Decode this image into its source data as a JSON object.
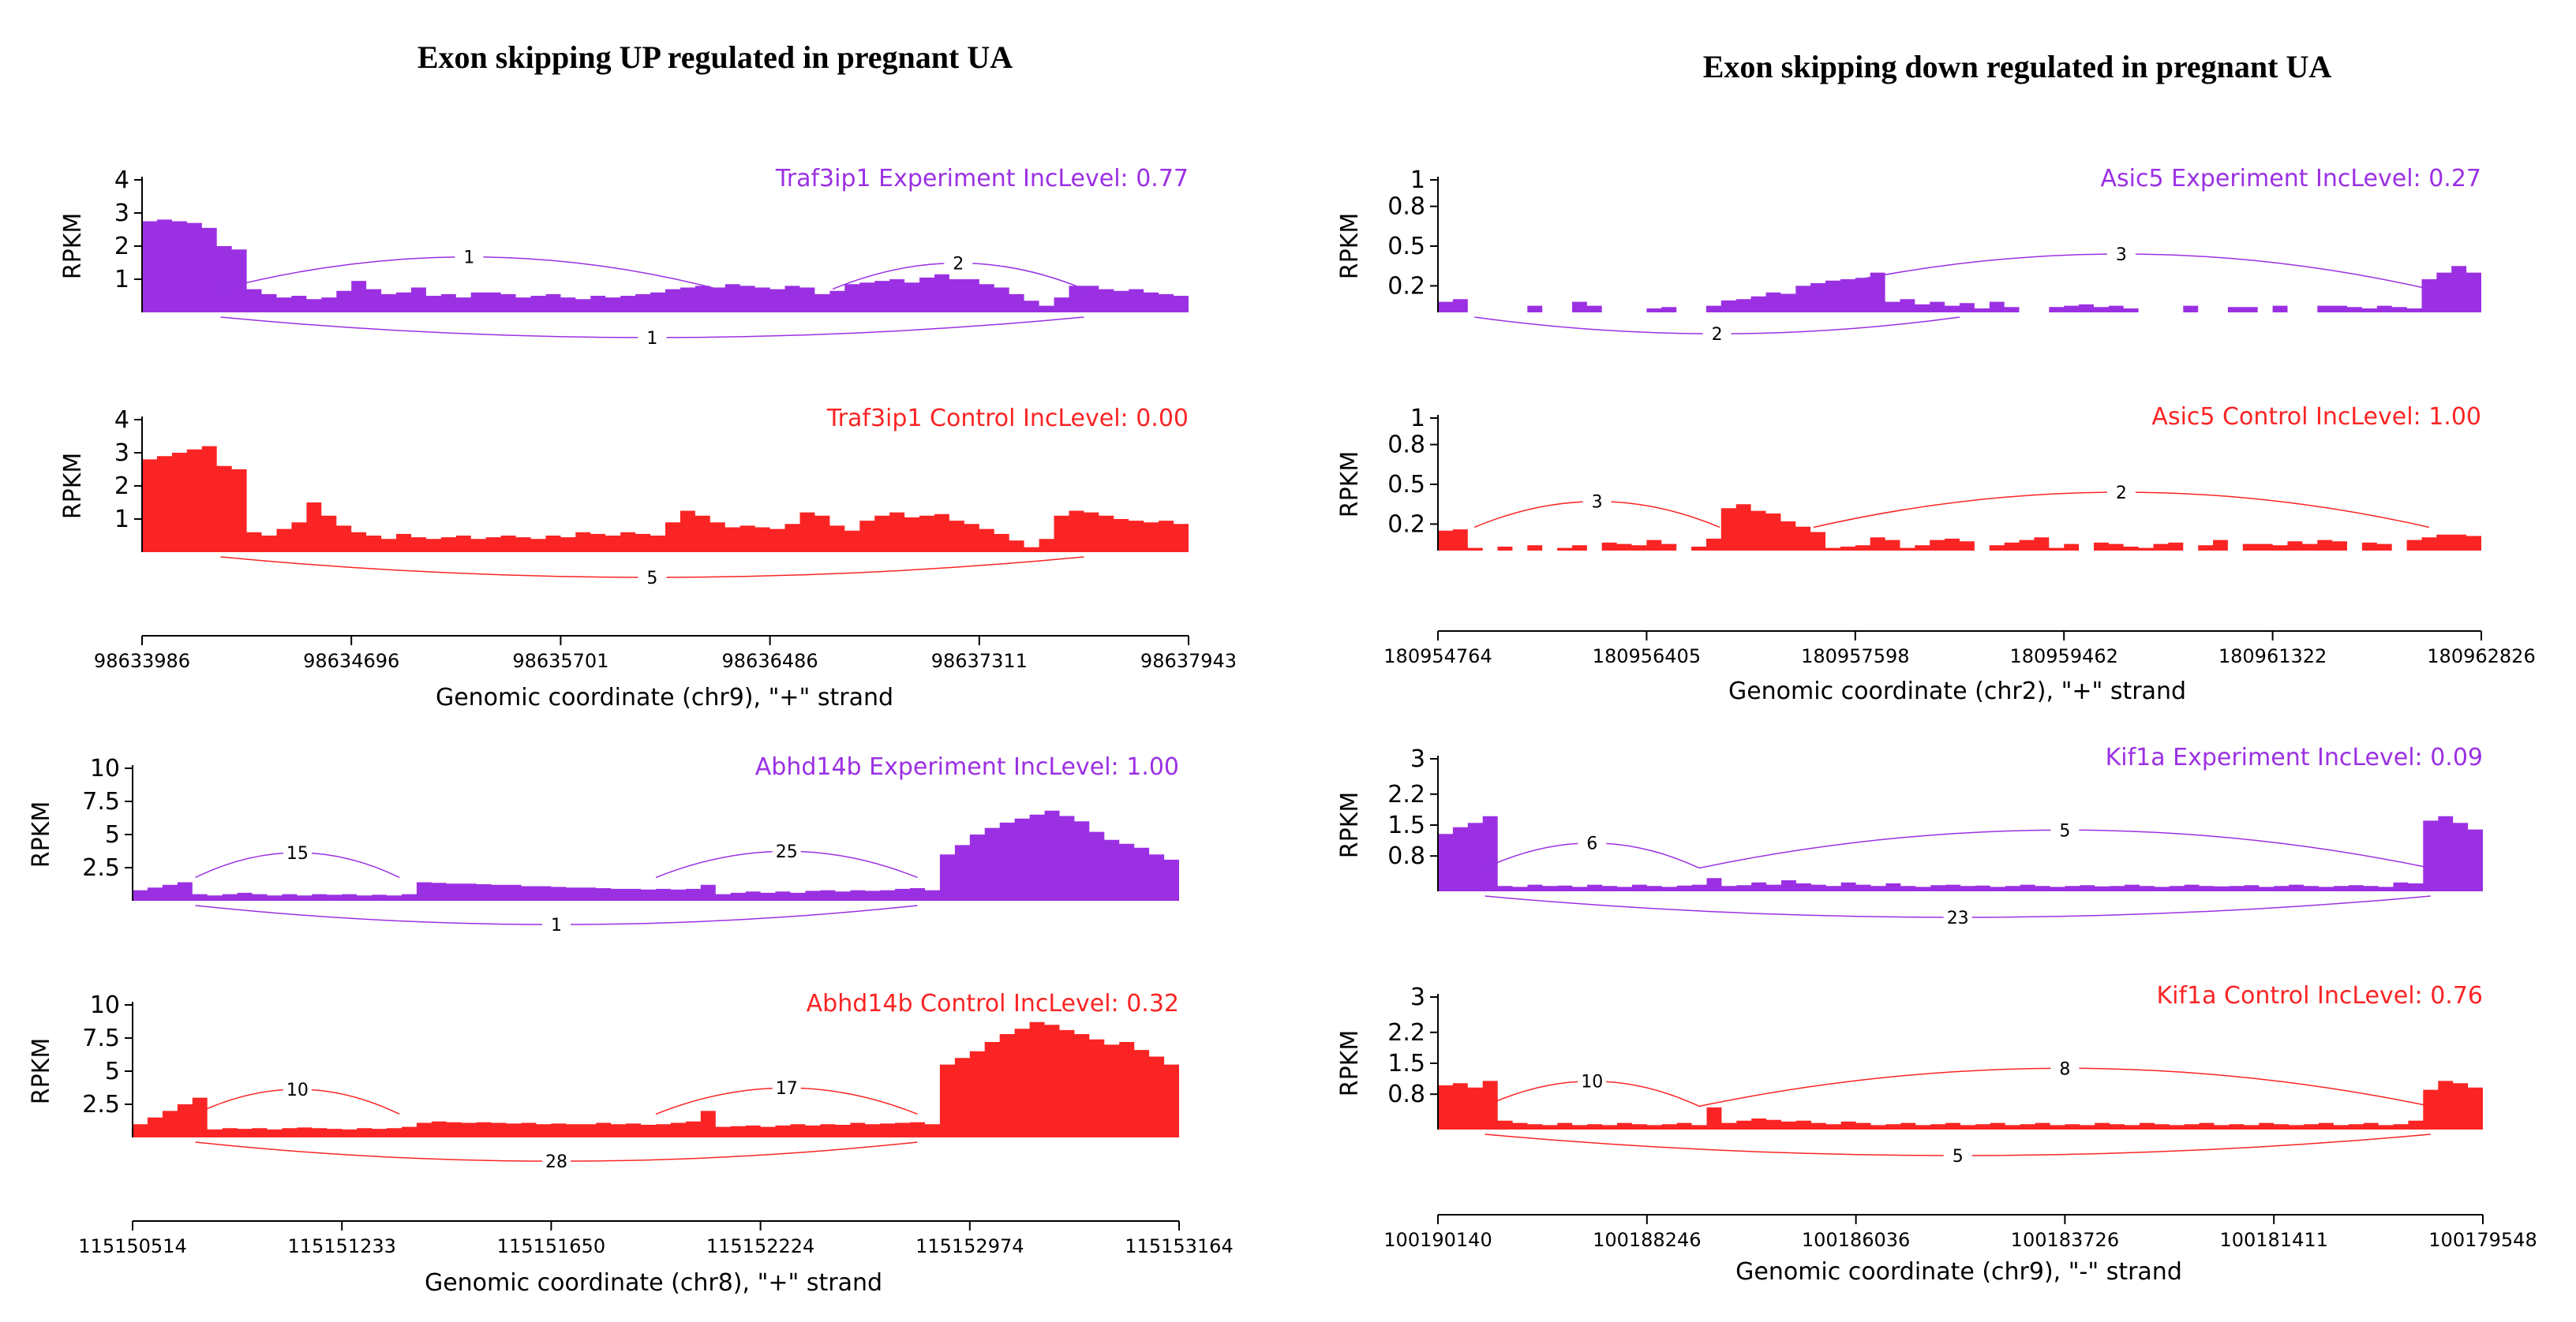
{
  "colors": {
    "experiment": "#9b30e3",
    "control": "#fa2424",
    "axis": "#000000"
  },
  "chart_data": [
    {
      "type": "area",
      "title": "Exon skipping UP regulated in pregnant UA",
      "gene": "Traf3ip1",
      "ylabel": "RPKM",
      "xlabel": "Genomic coordinate (chr9), \"+\" strand",
      "xticks": [
        "98633986",
        "98634696",
        "98635701",
        "98636486",
        "98637311",
        "98637943"
      ],
      "yticks": [
        "1",
        "2",
        "3",
        "4"
      ],
      "ylim": [
        0,
        4
      ],
      "exon_fractions": [
        0.075,
        0.55,
        0.9
      ],
      "tracks": [
        {
          "name": "Experiment",
          "label": "Traf3ip1 Experiment IncLevel: 0.77",
          "profile": [
            2.75,
            2.8,
            2.75,
            2.7,
            2.55,
            2.0,
            1.9,
            0.7,
            0.55,
            0.45,
            0.5,
            0.4,
            0.45,
            0.65,
            0.95,
            0.7,
            0.55,
            0.6,
            0.75,
            0.5,
            0.55,
            0.45,
            0.6,
            0.6,
            0.55,
            0.45,
            0.5,
            0.55,
            0.45,
            0.4,
            0.5,
            0.45,
            0.5,
            0.55,
            0.6,
            0.7,
            0.75,
            0.8,
            0.75,
            0.85,
            0.8,
            0.75,
            0.7,
            0.8,
            0.75,
            0.55,
            0.65,
            0.85,
            0.9,
            0.95,
            1.0,
            0.9,
            1.05,
            1.15,
            1.0,
            1.0,
            0.85,
            0.75,
            0.55,
            0.35,
            0.2,
            0.45,
            0.8,
            0.8,
            0.7,
            0.65,
            0.7,
            0.6,
            0.55,
            0.5
          ],
          "arcs_above": [
            {
              "a": 0.075,
              "b": 0.55,
              "label": "1"
            },
            {
              "a": 0.66,
              "b": 0.9,
              "label": "2"
            }
          ],
          "arcs_below": [
            {
              "a": 0.075,
              "b": 0.9,
              "label": "1"
            }
          ]
        },
        {
          "name": "Control",
          "label": "Traf3ip1 Control IncLevel: 0.00",
          "profile": [
            2.8,
            2.9,
            3.0,
            3.1,
            3.2,
            2.6,
            2.5,
            0.6,
            0.5,
            0.7,
            0.9,
            1.5,
            1.1,
            0.8,
            0.6,
            0.5,
            0.4,
            0.55,
            0.45,
            0.4,
            0.45,
            0.5,
            0.4,
            0.45,
            0.5,
            0.45,
            0.4,
            0.5,
            0.45,
            0.6,
            0.55,
            0.5,
            0.6,
            0.55,
            0.5,
            0.9,
            1.25,
            1.1,
            0.9,
            0.75,
            0.8,
            0.75,
            0.7,
            0.85,
            1.2,
            1.1,
            0.8,
            0.65,
            0.95,
            1.1,
            1.2,
            1.05,
            1.1,
            1.15,
            0.95,
            0.85,
            0.7,
            0.55,
            0.35,
            0.15,
            0.4,
            1.1,
            1.25,
            1.2,
            1.1,
            1.0,
            0.95,
            0.9,
            0.95,
            0.85
          ],
          "arcs_above": [],
          "arcs_below": [
            {
              "a": 0.075,
              "b": 0.9,
              "label": "5"
            }
          ]
        }
      ]
    },
    {
      "type": "area",
      "title": "Exon skipping UP regulated in pregnant UA",
      "gene": "Abhd14b",
      "ylabel": "RPKM",
      "xlabel": "Genomic coordinate (chr8), \"+\" strand",
      "xticks": [
        "115150514",
        "115151233",
        "115151650",
        "115152224",
        "115152974",
        "115153164"
      ],
      "yticks": [
        "2.5",
        "5",
        "7.5",
        "10"
      ],
      "ylim": [
        0,
        10
      ],
      "exon_fractions": [
        0.06,
        0.255,
        0.5,
        0.75
      ],
      "tracks": [
        {
          "name": "Experiment",
          "label": "Abhd14b Experiment IncLevel: 1.00",
          "profile": [
            0.8,
            1.0,
            1.2,
            1.4,
            0.5,
            0.4,
            0.5,
            0.6,
            0.5,
            0.4,
            0.5,
            0.4,
            0.5,
            0.45,
            0.5,
            0.4,
            0.45,
            0.4,
            0.5,
            1.4,
            1.35,
            1.3,
            1.3,
            1.25,
            1.2,
            1.2,
            1.1,
            1.1,
            1.05,
            1.0,
            1.0,
            0.95,
            0.9,
            0.9,
            0.85,
            0.9,
            0.85,
            0.9,
            1.2,
            0.5,
            0.6,
            0.7,
            0.6,
            0.7,
            0.6,
            0.75,
            0.8,
            0.7,
            0.8,
            0.75,
            0.8,
            0.9,
            0.95,
            0.8,
            3.5,
            4.2,
            5.0,
            5.5,
            5.9,
            6.2,
            6.5,
            6.8,
            6.4,
            6.0,
            5.2,
            4.6,
            4.3,
            4.0,
            3.5,
            3.1
          ],
          "arcs_above": [
            {
              "a": 0.06,
              "b": 0.255,
              "label": "15"
            },
            {
              "a": 0.5,
              "b": 0.75,
              "label": "25"
            }
          ],
          "arcs_below": [
            {
              "a": 0.06,
              "b": 0.75,
              "label": "1"
            }
          ]
        },
        {
          "name": "Control",
          "label": "Abhd14b Control IncLevel: 0.32",
          "profile": [
            1.0,
            1.5,
            2.0,
            2.5,
            3.0,
            0.6,
            0.7,
            0.65,
            0.7,
            0.6,
            0.7,
            0.75,
            0.7,
            0.65,
            0.6,
            0.7,
            0.65,
            0.7,
            0.8,
            1.1,
            1.2,
            1.15,
            1.1,
            1.15,
            1.1,
            1.05,
            1.1,
            1.0,
            1.05,
            1.0,
            1.0,
            1.1,
            1.0,
            1.05,
            0.95,
            1.0,
            1.1,
            1.2,
            2.0,
            0.8,
            0.85,
            0.9,
            0.8,
            0.9,
            1.0,
            0.9,
            1.0,
            0.95,
            1.1,
            1.0,
            1.05,
            1.1,
            1.15,
            1.0,
            5.5,
            6.0,
            6.5,
            7.2,
            7.8,
            8.2,
            8.7,
            8.5,
            8.1,
            7.8,
            7.4,
            7.0,
            7.2,
            6.6,
            6.1,
            5.5
          ],
          "arcs_above": [
            {
              "a": 0.06,
              "b": 0.255,
              "label": "10"
            },
            {
              "a": 0.5,
              "b": 0.75,
              "label": "17"
            }
          ],
          "arcs_below": [
            {
              "a": 0.06,
              "b": 0.75,
              "label": "28"
            }
          ]
        }
      ]
    },
    {
      "type": "area",
      "title": "Exon skipping down regulated  in pregnant UA",
      "gene": "Asic5",
      "ylabel": "RPKM",
      "xlabel": "Genomic coordinate (chr2), \"+\" strand",
      "xticks": [
        "180954764",
        "180956405",
        "180957598",
        "180959462",
        "180961322",
        "180962826"
      ],
      "yticks": [
        "0.2",
        "0.5",
        "0.8",
        "1"
      ],
      "ylim": [
        0,
        1
      ],
      "exon_fractions": [
        0.035,
        0.36,
        0.95
      ],
      "tracks": [
        {
          "name": "Experiment",
          "label": "Asic5 Experiment IncLevel: 0.27",
          "profile": [
            0.08,
            0.1,
            0.0,
            0.0,
            0.0,
            0.0,
            0.05,
            0.0,
            0.0,
            0.08,
            0.05,
            0.0,
            0.0,
            0.0,
            0.03,
            0.04,
            0.0,
            0.0,
            0.05,
            0.09,
            0.1,
            0.12,
            0.15,
            0.14,
            0.2,
            0.22,
            0.24,
            0.25,
            0.26,
            0.3,
            0.08,
            0.1,
            0.06,
            0.08,
            0.05,
            0.07,
            0.03,
            0.08,
            0.04,
            0.0,
            0.0,
            0.04,
            0.05,
            0.06,
            0.04,
            0.05,
            0.03,
            0.0,
            0.0,
            0.0,
            0.05,
            0.0,
            0.0,
            0.04,
            0.04,
            0.0,
            0.05,
            0.0,
            0.0,
            0.05,
            0.05,
            0.04,
            0.03,
            0.05,
            0.04,
            0.03,
            0.25,
            0.3,
            0.35,
            0.3
          ],
          "arcs_above": [
            {
              "a": 0.36,
              "b": 0.95,
              "label": "3"
            }
          ],
          "arcs_below": [
            {
              "a": 0.035,
              "b": 0.5,
              "label": "2"
            }
          ]
        },
        {
          "name": "Control",
          "label": "Asic5 Control IncLevel: 1.00",
          "profile": [
            0.15,
            0.16,
            0.02,
            0.0,
            0.03,
            0.0,
            0.04,
            0.0,
            0.02,
            0.04,
            0.0,
            0.06,
            0.05,
            0.04,
            0.08,
            0.05,
            0.0,
            0.03,
            0.09,
            0.32,
            0.35,
            0.3,
            0.28,
            0.22,
            0.18,
            0.14,
            0.02,
            0.03,
            0.04,
            0.1,
            0.08,
            0.02,
            0.04,
            0.08,
            0.09,
            0.07,
            0.0,
            0.04,
            0.06,
            0.08,
            0.1,
            0.02,
            0.05,
            0.0,
            0.06,
            0.05,
            0.03,
            0.02,
            0.05,
            0.06,
            0.0,
            0.04,
            0.08,
            0.0,
            0.05,
            0.05,
            0.04,
            0.07,
            0.05,
            0.08,
            0.07,
            0.0,
            0.06,
            0.05,
            0.0,
            0.08,
            0.1,
            0.12,
            0.12,
            0.11
          ],
          "arcs_above": [
            {
              "a": 0.035,
              "b": 0.27,
              "label": "3"
            },
            {
              "a": 0.36,
              "b": 0.95,
              "label": "2"
            }
          ],
          "arcs_below": []
        }
      ]
    },
    {
      "type": "area",
      "title": "Exon skipping down regulated  in pregnant UA",
      "gene": "Kif1a",
      "ylabel": "RPKM",
      "xlabel": "Genomic coordinate (chr9), \"-\" strand",
      "xticks": [
        "100190140",
        "100188246",
        "100186036",
        "100183726",
        "100181411",
        "100179548"
      ],
      "yticks": [
        "0.8",
        "1.5",
        "2.2",
        "3"
      ],
      "ylim": [
        0,
        3
      ],
      "exon_fractions": [
        0.045,
        0.25,
        0.95
      ],
      "tracks": [
        {
          "name": "Experiment",
          "label": "Kif1a Experiment IncLevel: 0.09",
          "profile": [
            1.3,
            1.45,
            1.55,
            1.7,
            0.12,
            0.1,
            0.15,
            0.12,
            0.13,
            0.1,
            0.15,
            0.12,
            0.1,
            0.15,
            0.12,
            0.1,
            0.13,
            0.15,
            0.3,
            0.12,
            0.14,
            0.2,
            0.15,
            0.25,
            0.18,
            0.15,
            0.12,
            0.2,
            0.15,
            0.12,
            0.18,
            0.12,
            0.1,
            0.14,
            0.15,
            0.12,
            0.13,
            0.1,
            0.12,
            0.15,
            0.12,
            0.1,
            0.12,
            0.14,
            0.11,
            0.12,
            0.15,
            0.12,
            0.1,
            0.12,
            0.15,
            0.12,
            0.11,
            0.12,
            0.14,
            0.1,
            0.12,
            0.15,
            0.12,
            0.1,
            0.12,
            0.14,
            0.12,
            0.1,
            0.2,
            0.18,
            1.6,
            1.7,
            1.55,
            1.4
          ],
          "arcs_above": [
            {
              "a": 0.045,
              "b": 0.25,
              "label": "6"
            },
            {
              "a": 0.25,
              "b": 0.95,
              "label": "5"
            }
          ],
          "arcs_below": [
            {
              "a": 0.045,
              "b": 0.95,
              "label": "23"
            }
          ]
        },
        {
          "name": "Control",
          "label": "Kif1a Control IncLevel: 0.76",
          "profile": [
            1.0,
            1.05,
            0.95,
            1.1,
            0.2,
            0.15,
            0.12,
            0.1,
            0.15,
            0.1,
            0.12,
            0.1,
            0.15,
            0.12,
            0.1,
            0.12,
            0.15,
            0.1,
            0.5,
            0.15,
            0.2,
            0.25,
            0.22,
            0.18,
            0.2,
            0.15,
            0.12,
            0.18,
            0.15,
            0.1,
            0.12,
            0.15,
            0.1,
            0.12,
            0.15,
            0.1,
            0.12,
            0.15,
            0.1,
            0.12,
            0.15,
            0.1,
            0.12,
            0.1,
            0.15,
            0.12,
            0.1,
            0.15,
            0.12,
            0.1,
            0.12,
            0.15,
            0.1,
            0.12,
            0.1,
            0.15,
            0.12,
            0.1,
            0.12,
            0.15,
            0.1,
            0.12,
            0.15,
            0.1,
            0.12,
            0.2,
            0.9,
            1.1,
            1.05,
            0.95
          ],
          "arcs_above": [
            {
              "a": 0.045,
              "b": 0.25,
              "label": "10"
            },
            {
              "a": 0.25,
              "b": 0.95,
              "label": "8"
            }
          ],
          "arcs_below": [
            {
              "a": 0.045,
              "b": 0.95,
              "label": "5"
            }
          ]
        }
      ]
    }
  ]
}
